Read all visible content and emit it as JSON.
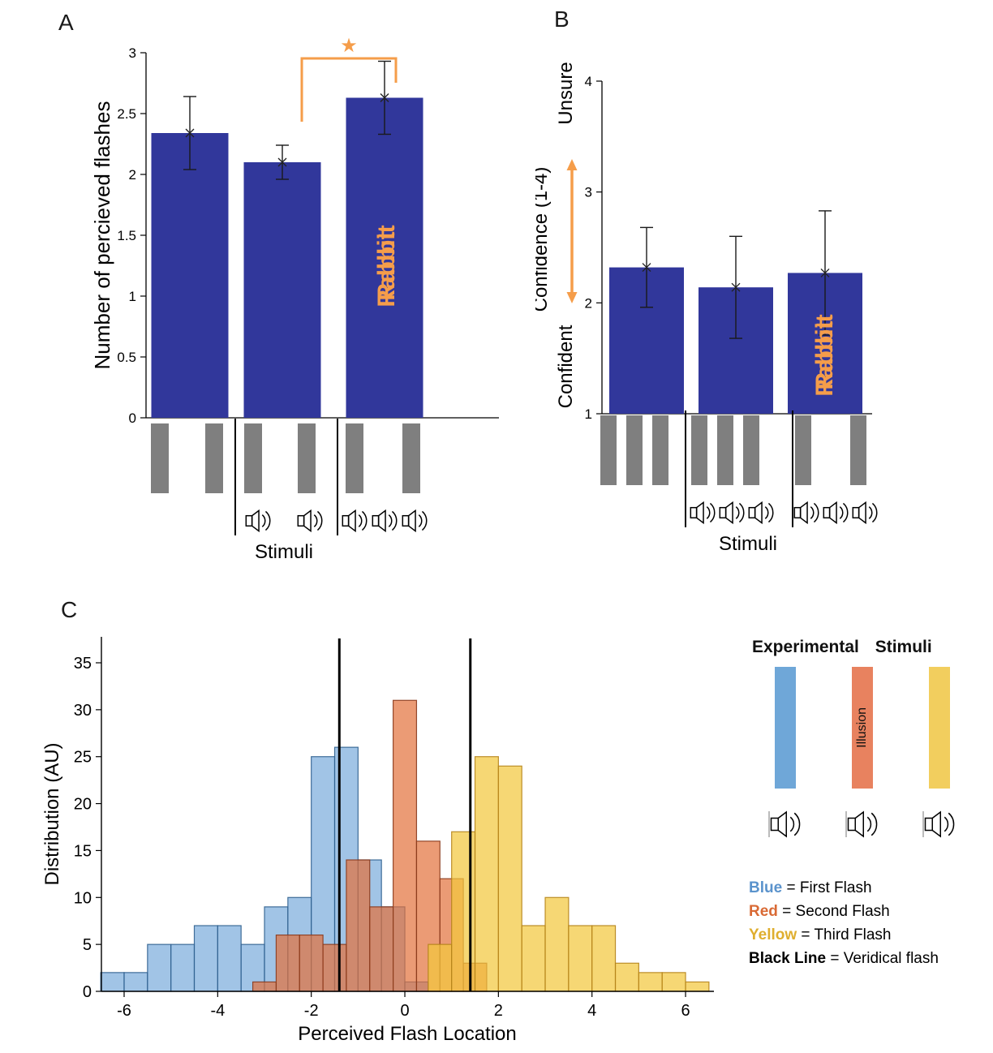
{
  "colors": {
    "bar_blue": "#31379b",
    "accent_orange": "#f59d4a",
    "stim_gray": "#7f7f7f",
    "hist_blue_fill": "#6ea4d9",
    "hist_blue_edge": "#30608f",
    "hist_red_fill": "#e2703a",
    "hist_red_edge": "#8a3a1c",
    "hist_yellow_fill": "#f3c83e",
    "hist_yellow_edge": "#b5831a",
    "legend_blue": "#6fa7d8",
    "legend_red": "#e8825f",
    "legend_yellow": "#f2ce5e"
  },
  "chart_data": [
    {
      "panel_label": "A",
      "type": "bar",
      "ylabel": "Number of percieved flashes",
      "xlabel": "Stimuli",
      "ylim": [
        0,
        3
      ],
      "yticks": [
        0,
        0.5,
        1,
        1.5,
        2,
        2.5,
        3
      ],
      "values": [
        2.34,
        2.1,
        2.63
      ],
      "errors": [
        0.3,
        0.14,
        0.3
      ],
      "significance": {
        "between": [
          2,
          3
        ],
        "marker": "★"
      },
      "bar3_label": "Rabbit",
      "stimuli_groups": [
        {
          "flashes": 2,
          "beeps": 0
        },
        {
          "flashes": 2,
          "beeps": 2
        },
        {
          "flashes": 2,
          "beeps": 3
        }
      ]
    },
    {
      "panel_label": "B",
      "type": "bar",
      "ylabel": "Confidence (1-4)",
      "ylabel_top": "Unsure",
      "ylabel_bottom": "Confident",
      "xlabel": "Stimuli",
      "ylim": [
        1,
        4
      ],
      "yticks": [
        1,
        2,
        3,
        4
      ],
      "values": [
        2.32,
        2.14,
        2.27
      ],
      "errors": [
        0.36,
        0.46,
        0.56
      ],
      "bar3_label": "Rabbit",
      "stimuli_groups": [
        {
          "flashes": 3,
          "beeps": 0
        },
        {
          "flashes": 3,
          "beeps": 3
        },
        {
          "flashes": 2,
          "beeps": 3
        }
      ]
    },
    {
      "panel_label": "C",
      "type": "histogram",
      "xlabel": "Perceived Flash Location",
      "ylabel": "Distribution (AU)",
      "xlim": [
        -6.5,
        6.6
      ],
      "ylim": [
        0,
        37
      ],
      "xticks": [
        -6,
        -4,
        -2,
        0,
        2,
        4,
        6
      ],
      "yticks": [
        0,
        5,
        10,
        15,
        20,
        25,
        30,
        35
      ],
      "bin_width": 0.5,
      "veridical_lines": [
        -1.4,
        1.4
      ],
      "series": [
        {
          "name": "First Flash",
          "color": "blue",
          "centers": [
            -6.25,
            -5.75,
            -5.25,
            -4.75,
            -4.25,
            -3.75,
            -3.25,
            -2.75,
            -2.25,
            -1.75,
            -1.25,
            -0.75,
            -0.25,
            0.25
          ],
          "heights": [
            2,
            2,
            5,
            5,
            7,
            7,
            5,
            9,
            10,
            25,
            26,
            14,
            9,
            1
          ]
        },
        {
          "name": "Second Flash",
          "color": "red",
          "centers": [
            -3.0,
            -2.5,
            -2.0,
            -1.5,
            -1.0,
            -0.5,
            0.0,
            0.5,
            1.0,
            1.5
          ],
          "heights": [
            1,
            6,
            6,
            5,
            14,
            9,
            31,
            16,
            12,
            3
          ]
        },
        {
          "name": "Third Flash",
          "color": "yellow",
          "centers": [
            0.75,
            1.25,
            1.75,
            2.25,
            2.75,
            3.25,
            3.75,
            4.25,
            4.75,
            5.25,
            5.75,
            6.25
          ],
          "heights": [
            5,
            17,
            25,
            24,
            7,
            10,
            7,
            7,
            3,
            2,
            2,
            1
          ]
        }
      ]
    }
  ],
  "legend": {
    "title": "Experimental Stimuli",
    "swatches": [
      {
        "name": "first-flash-stimulus",
        "color_key": "legend_blue",
        "label": ""
      },
      {
        "name": "second-flash-stimulus",
        "color_key": "legend_red",
        "label": "Illusion"
      },
      {
        "name": "third-flash-stimulus",
        "color_key": "legend_yellow",
        "label": ""
      }
    ],
    "entries": [
      {
        "key": "Blue",
        "color": "#5b93cc",
        "rest": "= First Flash"
      },
      {
        "key": "Red",
        "color": "#d96a35",
        "rest": "= Second Flash"
      },
      {
        "key": "Yellow",
        "color": "#dfae2f",
        "rest": "= Third Flash"
      },
      {
        "key": "Black Line",
        "color": "#000000",
        "rest": "= Veridical flash"
      }
    ]
  }
}
